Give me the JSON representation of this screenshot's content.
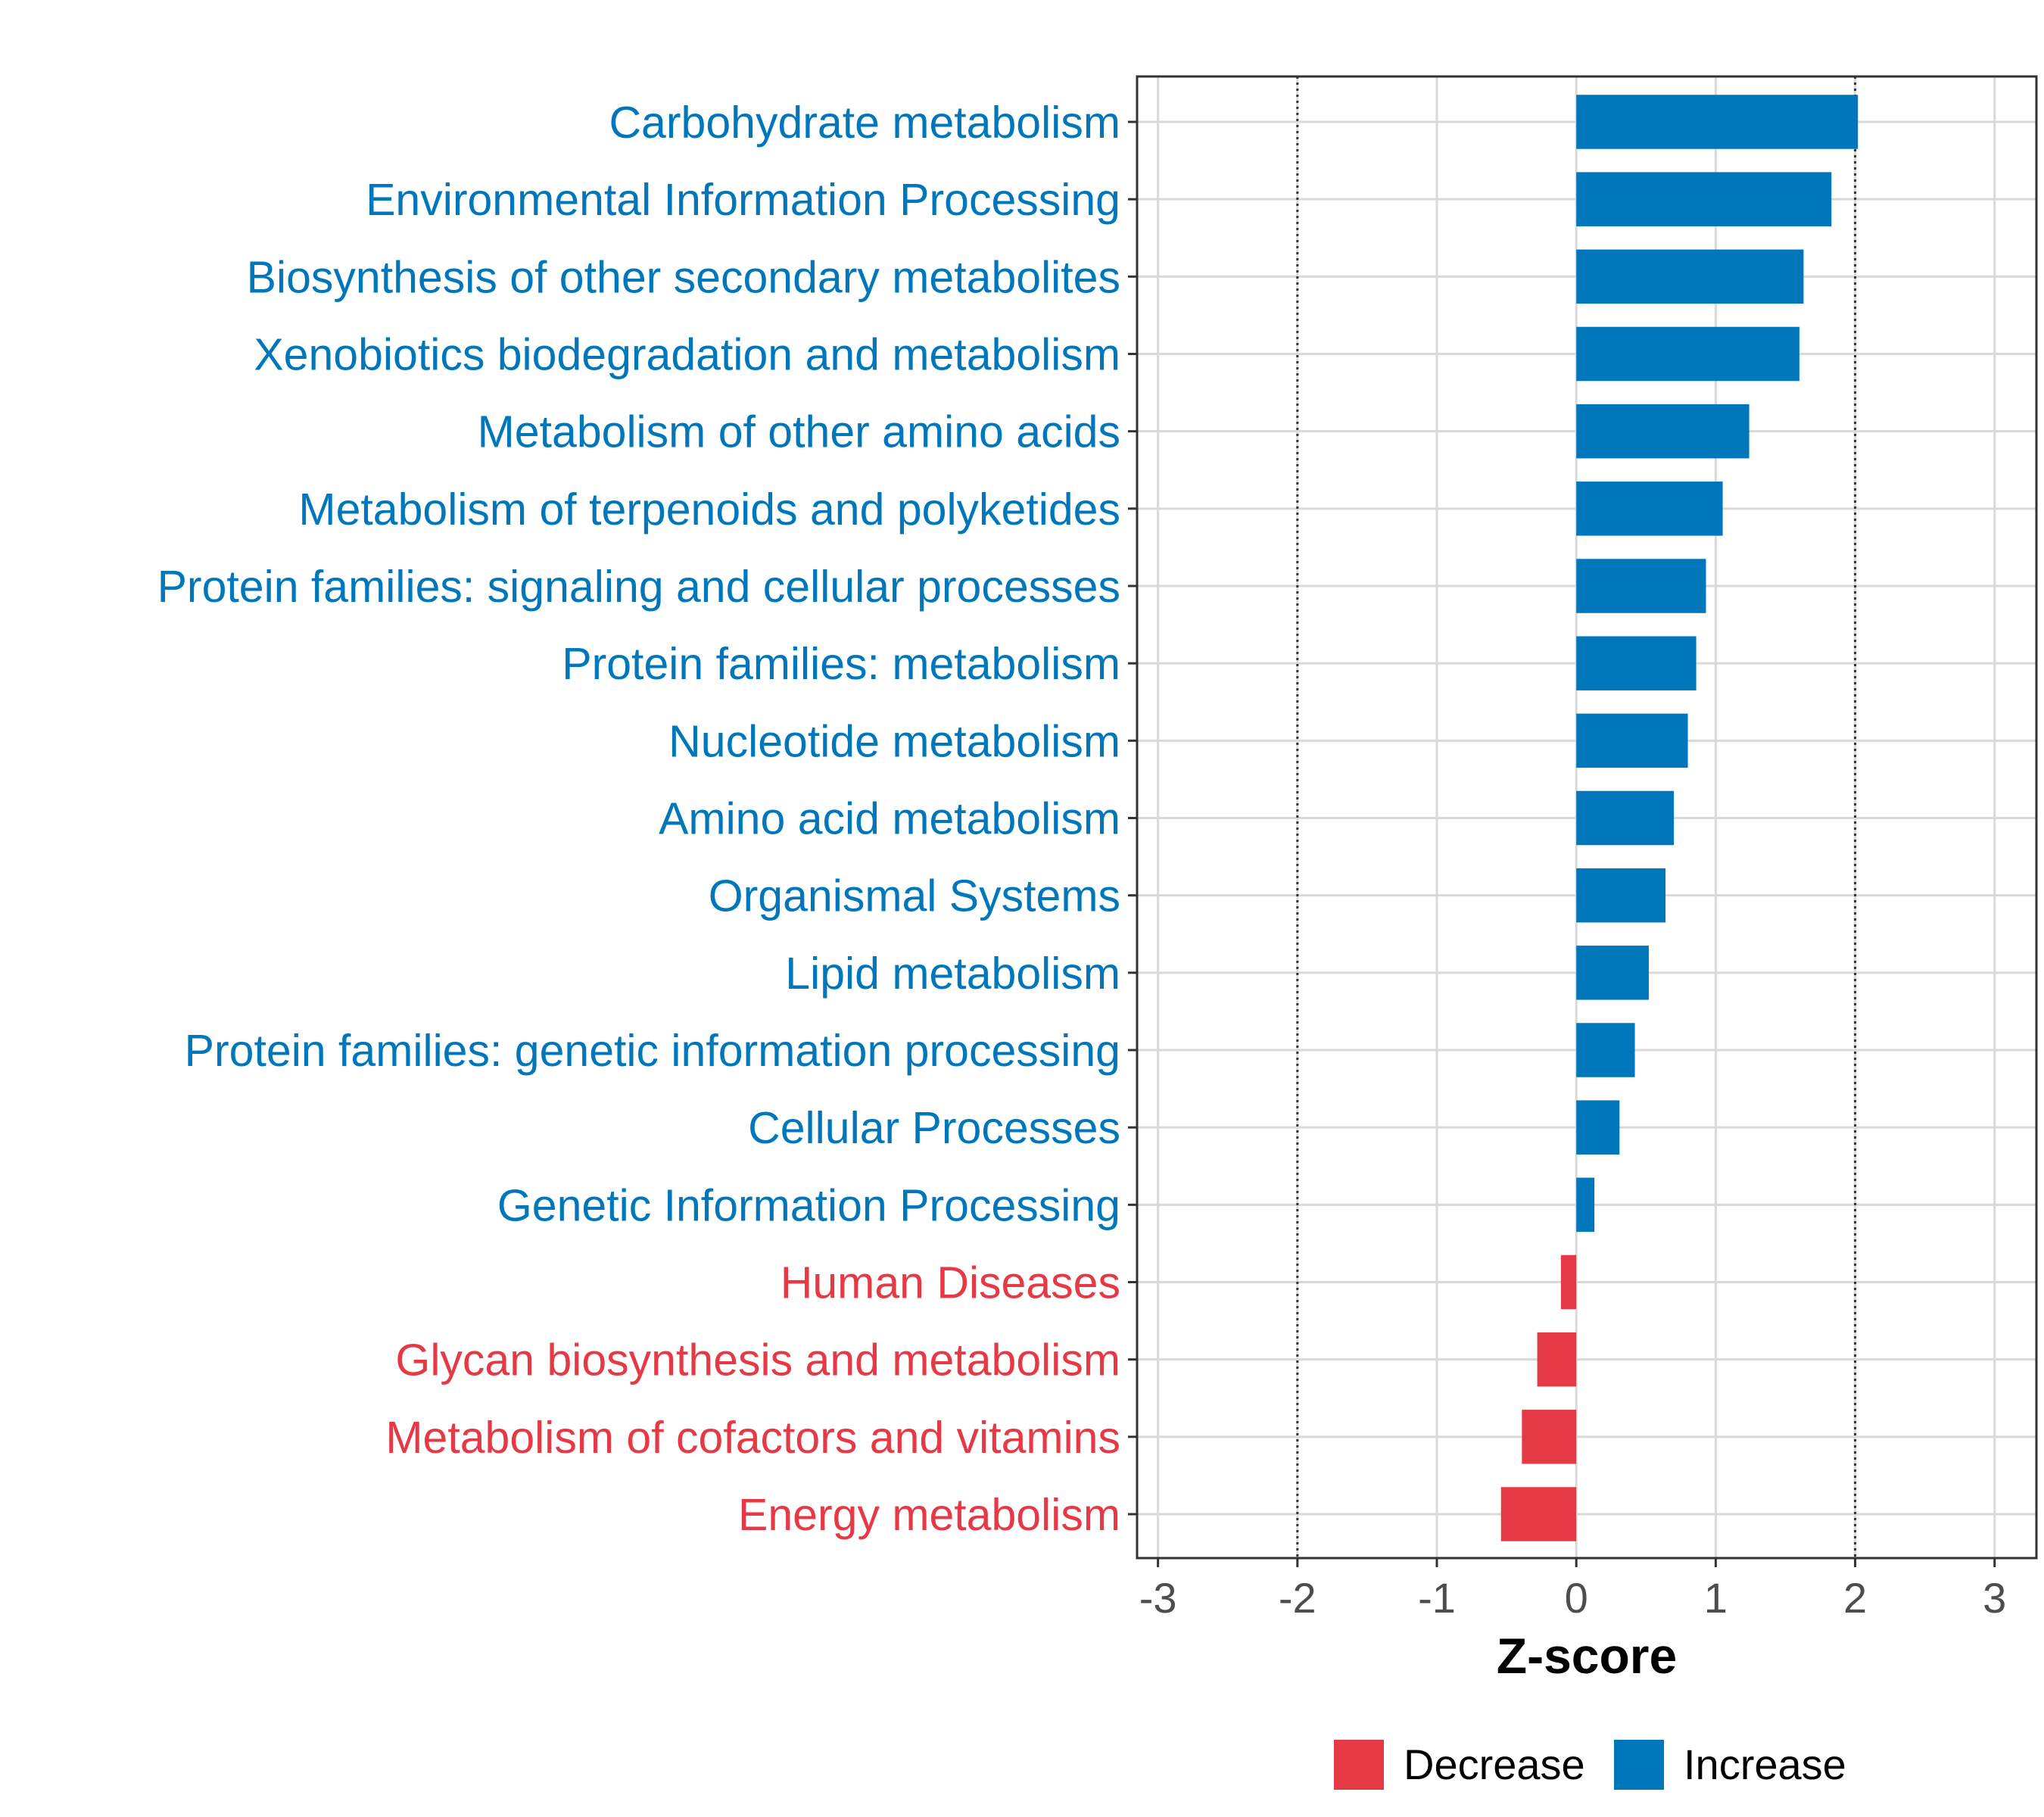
{
  "chart_data": {
    "type": "bar",
    "orientation": "horizontal",
    "xlabel": "Z-score",
    "xlim": [
      -3.15,
      3.3
    ],
    "xticks": [
      -3,
      -2,
      -1,
      0,
      1,
      2,
      3
    ],
    "xtick_labels": [
      "-3",
      "-2",
      "-1",
      "0",
      "1",
      "2",
      "3"
    ],
    "reference_lines": [
      -2,
      2
    ],
    "grid": true,
    "legend_position": "bottom",
    "colors": {
      "Decrease": "#E63946",
      "Increase": "#0077BB"
    },
    "legend": [
      {
        "label": "Decrease",
        "color": "#E63946"
      },
      {
        "label": "Increase",
        "color": "#0077BB"
      }
    ],
    "categories": [
      "Carbohydrate metabolism",
      "Environmental Information Processing",
      "Biosynthesis of other secondary metabolites",
      "Xenobiotics biodegradation and metabolism",
      "Metabolism of other amino acids",
      "Metabolism of terpenoids and polyketides",
      "Protein families: signaling and cellular processes",
      "Protein families: metabolism",
      "Nucleotide metabolism",
      "Amino acid metabolism",
      "Organismal Systems",
      "Lipid metabolism",
      "Protein families: genetic information processing",
      "Cellular Processes",
      "Genetic Information Processing",
      "Human Diseases",
      "Glycan biosynthesis and metabolism",
      "Metabolism of cofactors and vitamins",
      "Energy metabolism"
    ],
    "values": [
      2.02,
      1.83,
      1.63,
      1.6,
      1.24,
      1.05,
      0.93,
      0.86,
      0.8,
      0.7,
      0.64,
      0.52,
      0.42,
      0.31,
      0.13,
      -0.11,
      -0.28,
      -0.39,
      -0.54
    ],
    "groups": [
      "Increase",
      "Increase",
      "Increase",
      "Increase",
      "Increase",
      "Increase",
      "Increase",
      "Increase",
      "Increase",
      "Increase",
      "Increase",
      "Increase",
      "Increase",
      "Increase",
      "Increase",
      "Decrease",
      "Decrease",
      "Decrease",
      "Decrease"
    ]
  }
}
